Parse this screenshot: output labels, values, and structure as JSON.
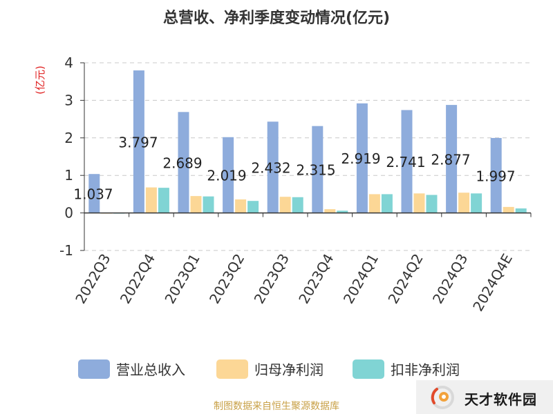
{
  "brand": {
    "name": "天才软件园"
  },
  "source_note": "制图数据来自恒生聚源数据库",
  "chart_data": {
    "type": "bar",
    "title": "总营收、净利季度变动情况(亿元)",
    "ylabel": "(亿元)",
    "ylim": [
      -1,
      4
    ],
    "yticks": [
      -1,
      0,
      1,
      2,
      3,
      4
    ],
    "grid": true,
    "legend_position": "bottom",
    "categories": [
      "2022Q3",
      "2022Q4",
      "2023Q1",
      "2023Q2",
      "2023Q3",
      "2023Q4",
      "2024Q1",
      "2024Q2",
      "2024Q3",
      "2024Q4E"
    ],
    "series": [
      {
        "name": "营业总收入",
        "color": "#8eacdc",
        "values": [
          1.037,
          3.797,
          2.689,
          2.019,
          2.432,
          2.315,
          2.919,
          2.741,
          2.877,
          1.997
        ],
        "labels": [
          "1.037",
          "3.797",
          "2.689",
          "2.019",
          "2.432",
          "2.315",
          "2.919",
          "2.741",
          "2.877",
          "1.997"
        ]
      },
      {
        "name": "归母净利润",
        "color": "#fcd796",
        "values": [
          0.0,
          0.68,
          0.45,
          0.36,
          0.43,
          0.1,
          0.5,
          0.52,
          0.54,
          0.16
        ]
      },
      {
        "name": "扣非净利润",
        "color": "#80d4d4",
        "values": [
          0.0,
          0.67,
          0.44,
          0.32,
          0.42,
          0.06,
          0.5,
          0.48,
          0.52,
          0.12
        ]
      }
    ]
  }
}
